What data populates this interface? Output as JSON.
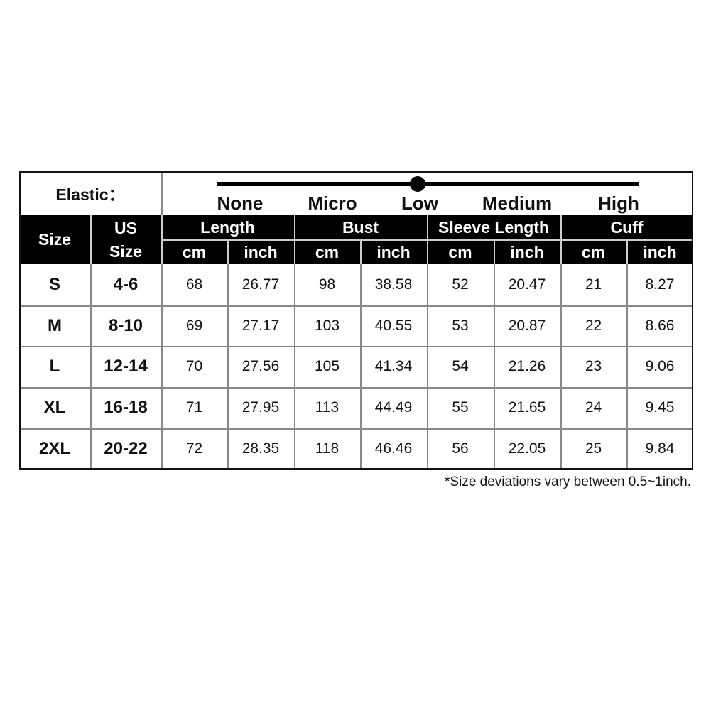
{
  "elastic": {
    "label": "Elastic：",
    "levels": [
      "None",
      "Micro",
      "Low",
      "Medium",
      "High"
    ],
    "selected": "Low"
  },
  "header": {
    "size": "Size",
    "us_size_line1": "US",
    "us_size_line2": "Size",
    "groups": [
      "Length",
      "Bust",
      "Sleeve Length",
      "Cuff"
    ],
    "units": [
      "cm",
      "inch",
      "cm",
      "inch",
      "cm",
      "inch",
      "cm",
      "inch"
    ]
  },
  "rows": [
    [
      "S",
      "4-6",
      "68",
      "26.77",
      "98",
      "38.58",
      "52",
      "20.47",
      "21",
      "8.27"
    ],
    [
      "M",
      "8-10",
      "69",
      "27.17",
      "103",
      "40.55",
      "53",
      "20.87",
      "22",
      "8.66"
    ],
    [
      "L",
      "12-14",
      "70",
      "27.56",
      "105",
      "41.34",
      "54",
      "21.26",
      "23",
      "9.06"
    ],
    [
      "XL",
      "16-18",
      "71",
      "27.95",
      "113",
      "44.49",
      "55",
      "21.65",
      "24",
      "9.45"
    ],
    [
      "2XL",
      "20-22",
      "72",
      "28.35",
      "118",
      "46.46",
      "56",
      "22.05",
      "25",
      "9.84"
    ]
  ],
  "note": "*Size deviations vary between 0.5~1inch."
}
